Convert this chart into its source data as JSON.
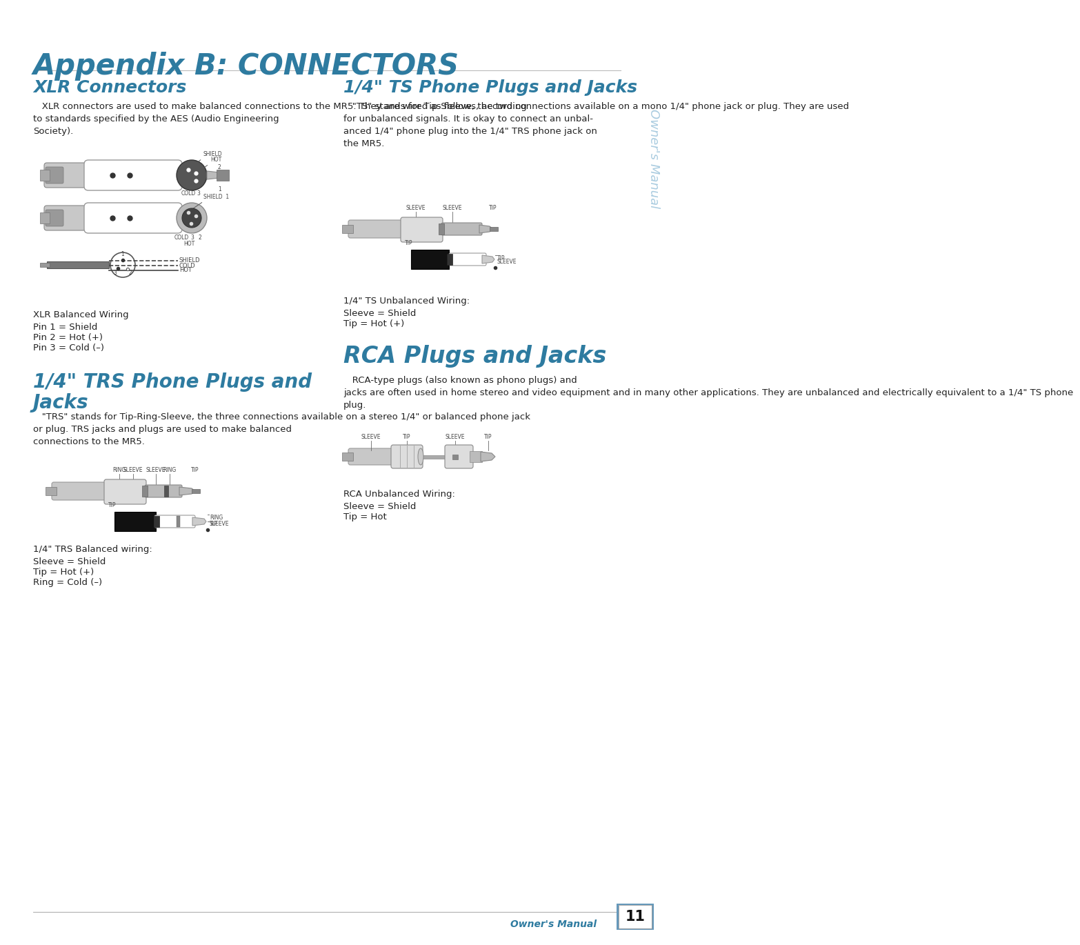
{
  "title": "Appendix B: CONNECTORS",
  "title_color": "#2E7BA0",
  "bg_color": "#FFFFFF",
  "sidebar_text": "Owner's Manual",
  "sidebar_color": "#AACCE0",
  "page_number": "11",
  "section1_title": "XLR Connectors",
  "section_color": "#2E7BA0",
  "section1_body": "   XLR connectors are used to make balanced connections to the MR5. They are wired as follows, according\nto standards specified by the AES (Audio Engineering\nSociety).",
  "section1_wiring_title": "XLR Balanced Wiring",
  "section1_wiring": [
    "Pin 1 = Shield",
    "Pin 2 = Hot (+)",
    "Pin 3 = Cold (–)"
  ],
  "section2_title": "1/4\" TRS Phone Plugs and\nJacks",
  "section2_body": "   \"TRS\" stands for Tip-Ring-Sleeve, the three connections available on a stereo 1/4\" or balanced phone jack\nor plug. TRS jacks and plugs are used to make balanced\nconnections to the MR5.",
  "section2_wiring_title": "1/4\" TRS Balanced wiring:",
  "section2_wiring": [
    "Sleeve = Shield",
    "Tip = Hot (+)",
    "Ring = Cold (–)"
  ],
  "section3_title": "1/4\" TS Phone Plugs and Jacks",
  "section3_body": "   \"TS\" stands for Tip-Sleeve, the two connections available on a mono 1/4\" phone jack or plug. They are used\nfor unbalanced signals. It is okay to connect an unbal-\nanced 1/4\" phone plug into the 1/4\" TRS phone jack on\nthe MR5.",
  "section3_wiring_title": "1/4\" TS Unbalanced Wiring:",
  "section3_wiring": [
    "Sleeve = Shield",
    "Tip = Hot (+)"
  ],
  "section4_title": "RCA Plugs and Jacks",
  "section4_body": "   RCA-type plugs (also known as phono plugs) and\njacks are often used in home stereo and video equipment and in many other applications. They are unbalanced and electrically equivalent to a 1/4\" TS phone\nplug.",
  "section4_wiring_title": "RCA Unbalanced Wiring:",
  "section4_wiring": [
    "Sleeve = Shield",
    "Tip = Hot"
  ],
  "footer_text": "Owner's Manual",
  "footer_color": "#2E7BA0",
  "text_color": "#222222",
  "body_fontsize": 9.5,
  "section_title_fontsize": 18,
  "main_title_fontsize": 30
}
